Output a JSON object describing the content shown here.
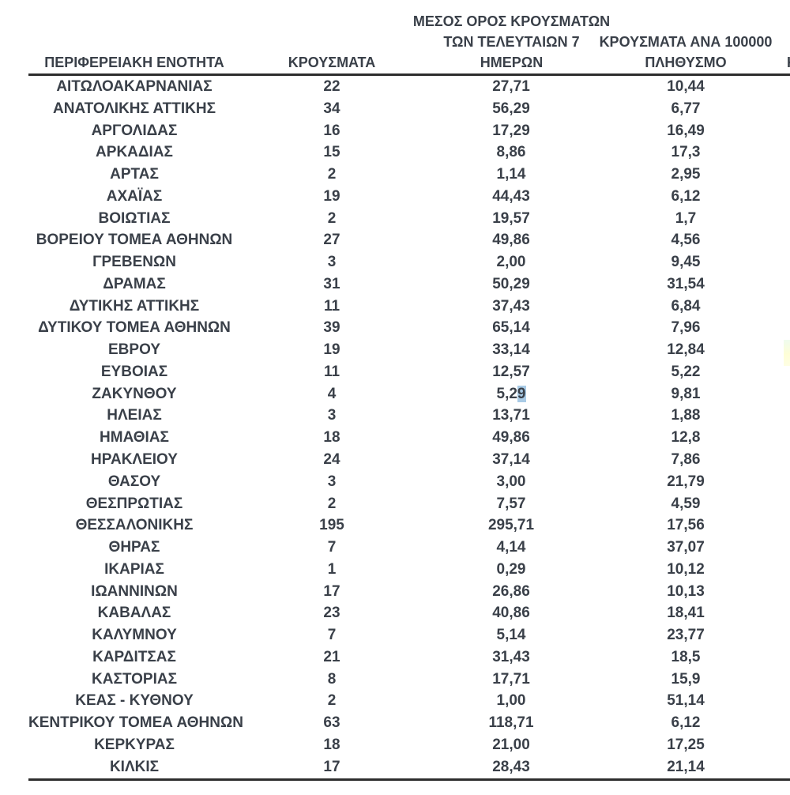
{
  "table": {
    "headers": {
      "col1": "ΠΕΡΙΦΕΡΕΙΑΚΗ ΕΝΟΤΗΤΑ",
      "col2": "ΚΡΟΥΣΜΑΤΑ",
      "col3_line1": "ΜΕΣΟΣ ΟΡΟΣ ΚΡΟΥΣΜΑΤΩΝ",
      "col3_line2": "ΤΩΝ ΤΕΛΕΥΤΑΙΩΝ 7",
      "col3_line3": "ΗΜΕΡΩΝ",
      "col4_line1": "ΚΡΟΥΣΜΑΤΑ ΑΝΑ 100000",
      "col4_line2": "ΠΛΗΘΥΣΜΟ",
      "clipped_next_column_fragment": "Κ"
    },
    "selection_highlight_color": "#a9cbe6",
    "rows": [
      {
        "region": "ΑΙΤΩΛΟΑΚΑΡΝΑΝΙΑΣ",
        "cases": "22",
        "avg7": "27,71",
        "per100k": "10,44"
      },
      {
        "region": "ΑΝΑΤΟΛΙΚΗΣ ΑΤΤΙΚΗΣ",
        "cases": "34",
        "avg7": "56,29",
        "per100k": "6,77"
      },
      {
        "region": "ΑΡΓΟΛΙΔΑΣ",
        "cases": "16",
        "avg7": "17,29",
        "per100k": "16,49"
      },
      {
        "region": "ΑΡΚΑΔΙΑΣ",
        "cases": "15",
        "avg7": "8,86",
        "per100k": "17,3"
      },
      {
        "region": "ΑΡΤΑΣ",
        "cases": "2",
        "avg7": "1,14",
        "per100k": "2,95"
      },
      {
        "region": "ΑΧΑΪΑΣ",
        "cases": "19",
        "avg7": "44,43",
        "per100k": "6,12"
      },
      {
        "region": "ΒΟΙΩΤΙΑΣ",
        "cases": "2",
        "avg7": "19,57",
        "per100k": "1,7"
      },
      {
        "region": "ΒΟΡΕΙΟΥ ΤΟΜΕΑ ΑΘΗΝΩΝ",
        "cases": "27",
        "avg7": "49,86",
        "per100k": "4,56"
      },
      {
        "region": "ΓΡΕΒΕΝΩΝ",
        "cases": "3",
        "avg7": "2,00",
        "per100k": "9,45"
      },
      {
        "region": "ΔΡΑΜΑΣ",
        "cases": "31",
        "avg7": "50,29",
        "per100k": "31,54"
      },
      {
        "region": "ΔΥΤΙΚΗΣ ΑΤΤΙΚΗΣ",
        "cases": "11",
        "avg7": "37,43",
        "per100k": "6,84"
      },
      {
        "region": "ΔΥΤΙΚΟΥ ΤΟΜΕΑ ΑΘΗΝΩΝ",
        "cases": "39",
        "avg7": "65,14",
        "per100k": "7,96"
      },
      {
        "region": "ΕΒΡΟΥ",
        "cases": "19",
        "avg7": "33,14",
        "per100k": "12,84"
      },
      {
        "region": "ΕΥΒΟΙΑΣ",
        "cases": "11",
        "avg7": "12,57",
        "per100k": "5,22"
      },
      {
        "region": "ΖΑΚΥΝΘΟΥ",
        "cases": "4",
        "avg7_main": "5,2",
        "avg7_hl": "9",
        "per100k": "9,81"
      },
      {
        "region": "ΗΛΕΙΑΣ",
        "cases": "3",
        "avg7": "13,71",
        "per100k": "1,88"
      },
      {
        "region": "ΗΜΑΘΙΑΣ",
        "cases": "18",
        "avg7": "49,86",
        "per100k": "12,8"
      },
      {
        "region": "ΗΡΑΚΛΕΙΟΥ",
        "cases": "24",
        "avg7": "37,14",
        "per100k": "7,86"
      },
      {
        "region": "ΘΑΣΟΥ",
        "cases": "3",
        "avg7": "3,00",
        "per100k": "21,79"
      },
      {
        "region": "ΘΕΣΠΡΩΤΙΑΣ",
        "cases": "2",
        "avg7": "7,57",
        "per100k": "4,59"
      },
      {
        "region": "ΘΕΣΣΑΛΟΝΙΚΗΣ",
        "cases": "195",
        "avg7": "295,71",
        "per100k": "17,56"
      },
      {
        "region": "ΘΗΡΑΣ",
        "cases": "7",
        "avg7": "4,14",
        "per100k": "37,07"
      },
      {
        "region": "ΙΚΑΡΙΑΣ",
        "cases": "1",
        "avg7": "0,29",
        "per100k": "10,12"
      },
      {
        "region": "ΙΩΑΝΝΙΝΩΝ",
        "cases": "17",
        "avg7": "26,86",
        "per100k": "10,13"
      },
      {
        "region": "ΚΑΒΑΛΑΣ",
        "cases": "23",
        "avg7": "40,86",
        "per100k": "18,41"
      },
      {
        "region": "ΚΑΛΥΜΝΟΥ",
        "cases": "7",
        "avg7": "5,14",
        "per100k": "23,77"
      },
      {
        "region": "ΚΑΡΔΙΤΣΑΣ",
        "cases": "21",
        "avg7": "31,43",
        "per100k": "18,5"
      },
      {
        "region": "ΚΑΣΤΟΡΙΑΣ",
        "cases": "8",
        "avg7": "17,71",
        "per100k": "15,9"
      },
      {
        "region": "ΚΕΑΣ - ΚΥΘΝΟΥ",
        "cases": "2",
        "avg7": "1,00",
        "per100k": "51,14"
      },
      {
        "region": "ΚΕΝΤΡΙΚΟΥ ΤΟΜΕΑ ΑΘΗΝΩΝ",
        "cases": "63",
        "avg7": "118,71",
        "per100k": "6,12"
      },
      {
        "region": "ΚΕΡΚΥΡΑΣ",
        "cases": "18",
        "avg7": "21,00",
        "per100k": "17,25"
      },
      {
        "region": "ΚΙΛΚΙΣ",
        "cases": "17",
        "avg7": "28,43",
        "per100k": "21,14"
      }
    ]
  }
}
